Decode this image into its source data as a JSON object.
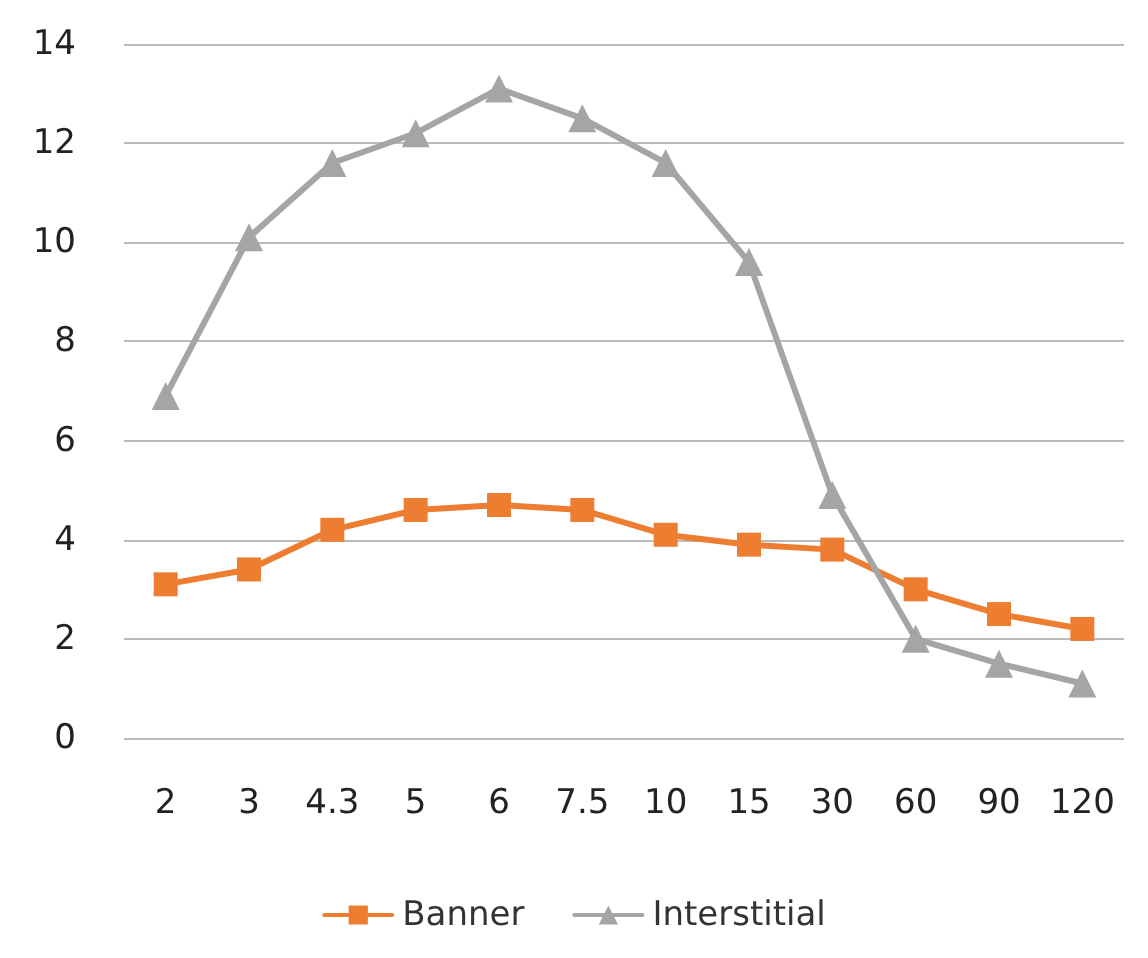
{
  "chart_data": {
    "type": "line",
    "categories": [
      "2",
      "3",
      "4.3",
      "5",
      "6",
      "7.5",
      "10",
      "15",
      "30",
      "60",
      "90",
      "120"
    ],
    "series": [
      {
        "name": "Banner",
        "color": "#ed7d31",
        "marker": "square",
        "values": [
          3.1,
          3.4,
          4.2,
          4.6,
          4.7,
          4.6,
          4.1,
          3.9,
          3.8,
          3.0,
          2.5,
          2.2
        ]
      },
      {
        "name": "Interstitial",
        "color": "#a5a5a5",
        "marker": "triangle",
        "values": [
          6.9,
          10.1,
          11.6,
          12.2,
          13.1,
          12.5,
          11.6,
          9.6,
          4.9,
          2.0,
          1.5,
          1.1
        ]
      }
    ],
    "ylim": [
      0,
      14
    ],
    "yticks": [
      0,
      2,
      4,
      6,
      8,
      10,
      12,
      14
    ],
    "grid": "y",
    "legend": "bottom",
    "line_style": "solid"
  }
}
